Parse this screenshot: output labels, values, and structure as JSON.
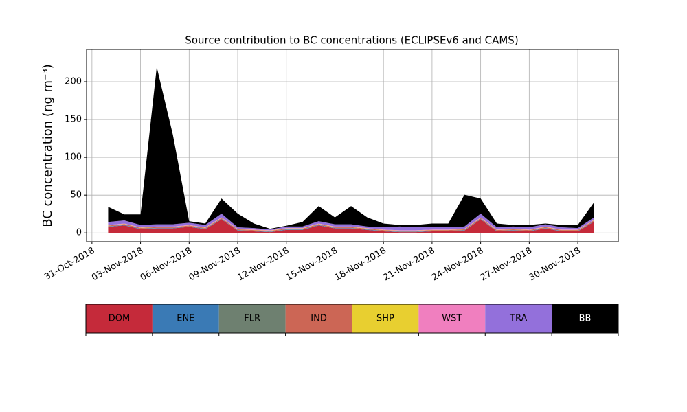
{
  "chart_data": {
    "type": "stacked_area",
    "title": "Source contribution to BC concentrations (ECLIPSEv6 and CAMS)",
    "ylabel": "BC concentration (ng m⁻³)",
    "x": [
      "2018-11-01",
      "2018-11-02",
      "2018-11-03",
      "2018-11-04",
      "2018-11-05",
      "2018-11-06",
      "2018-11-07",
      "2018-11-08",
      "2018-11-09",
      "2018-11-10",
      "2018-11-11",
      "2018-11-12",
      "2018-11-13",
      "2018-11-14",
      "2018-11-15",
      "2018-11-16",
      "2018-11-17",
      "2018-11-18",
      "2018-11-19",
      "2018-11-20",
      "2018-11-21",
      "2018-11-22",
      "2018-11-23",
      "2018-11-24",
      "2018-11-25",
      "2018-11-26",
      "2018-11-27",
      "2018-11-28",
      "2018-11-29",
      "2018-11-30",
      "2018-12-01"
    ],
    "series": [
      {
        "name": "DOM",
        "color": "#c52a3a",
        "values": [
          8,
          10,
          5,
          6,
          6,
          8,
          5,
          18,
          3,
          2,
          1,
          4,
          4,
          10,
          6,
          6,
          4,
          2,
          1,
          1,
          2,
          2,
          3,
          18,
          2,
          3,
          2,
          6,
          2,
          2,
          15
        ]
      },
      {
        "name": "ENE",
        "color": "#3a7ab5",
        "values": [
          0.5,
          0.5,
          0.5,
          0.5,
          0.5,
          0.5,
          0.5,
          0.5,
          0.5,
          0.5,
          0.5,
          0.5,
          0.5,
          0.5,
          0.5,
          0.5,
          0.5,
          0.5,
          0.5,
          0.5,
          0.5,
          0.5,
          0.5,
          0.5,
          0.5,
          0.5,
          0.5,
          0.5,
          0.5,
          0.5,
          0.5
        ]
      },
      {
        "name": "FLR",
        "color": "#6e8070",
        "values": [
          0.2,
          0.2,
          0.2,
          0.2,
          0.2,
          0.2,
          0.2,
          0.2,
          0.2,
          0.2,
          0.2,
          0.2,
          0.2,
          0.2,
          0.2,
          0.2,
          0.2,
          0.2,
          0.2,
          0.2,
          0.2,
          0.2,
          0.2,
          0.2,
          0.2,
          0.2,
          0.2,
          0.2,
          0.2,
          0.2,
          0.2
        ]
      },
      {
        "name": "IND",
        "color": "#cc6655",
        "values": [
          1,
          1,
          1,
          1,
          1,
          1,
          1,
          1,
          1,
          1,
          1,
          1,
          1,
          1,
          1,
          1,
          1,
          1,
          1,
          1,
          1,
          1,
          1,
          1,
          1,
          1,
          1,
          1,
          1,
          1,
          1
        ]
      },
      {
        "name": "SHP",
        "color": "#e8cf30",
        "values": [
          0.3,
          0.3,
          0.3,
          0.3,
          0.3,
          0.3,
          0.3,
          0.3,
          0.3,
          0.3,
          0.3,
          0.3,
          0.3,
          0.3,
          0.3,
          0.3,
          0.3,
          0.3,
          0.3,
          0.3,
          0.3,
          0.3,
          0.3,
          0.3,
          0.3,
          0.3,
          0.3,
          0.3,
          0.3,
          0.3,
          0.3
        ]
      },
      {
        "name": "WST",
        "color": "#f07fbf",
        "values": [
          0.5,
          0.5,
          0.5,
          0.5,
          0.5,
          0.5,
          0.5,
          0.5,
          0.5,
          0.5,
          0.5,
          0.5,
          0.5,
          0.5,
          0.5,
          0.5,
          0.5,
          0.5,
          0.5,
          0.5,
          0.5,
          0.5,
          0.5,
          0.5,
          0.5,
          0.5,
          0.5,
          0.5,
          0.5,
          0.5,
          0.5
        ]
      },
      {
        "name": "TRA",
        "color": "#9370db",
        "values": [
          4,
          4,
          3,
          3,
          3,
          3,
          3,
          5,
          2,
          2,
          1,
          2,
          2,
          3,
          3,
          3,
          2,
          3,
          5,
          4,
          3,
          3,
          3,
          5,
          3,
          3,
          3,
          3,
          3,
          2,
          3
        ]
      },
      {
        "name": "BB",
        "color": "#000000",
        "values": [
          20,
          8,
          14,
          208,
          118,
          2,
          2,
          20,
          18,
          6,
          1,
          1,
          6,
          20,
          9,
          24,
          12,
          5,
          2,
          3,
          5,
          5,
          42,
          20,
          5,
          2,
          3,
          1,
          3,
          4,
          20
        ]
      }
    ],
    "xlim": [
      "2018-10-30T16:00",
      "2018-12-02T12:00"
    ],
    "xticks": [
      {
        "value": "2018-10-31",
        "label": "31-Oct-2018"
      },
      {
        "value": "2018-11-03",
        "label": "03-Nov-2018"
      },
      {
        "value": "2018-11-06",
        "label": "06-Nov-2018"
      },
      {
        "value": "2018-11-09",
        "label": "09-Nov-2018"
      },
      {
        "value": "2018-11-12",
        "label": "12-Nov-2018"
      },
      {
        "value": "2018-11-15",
        "label": "15-Nov-2018"
      },
      {
        "value": "2018-11-18",
        "label": "18-Nov-2018"
      },
      {
        "value": "2018-11-21",
        "label": "21-Nov-2018"
      },
      {
        "value": "2018-11-24",
        "label": "24-Nov-2018"
      },
      {
        "value": "2018-11-27",
        "label": "27-Nov-2018"
      },
      {
        "value": "2018-11-30",
        "label": "30-Nov-2018"
      }
    ],
    "ylim": [
      -11.6,
      242.7
    ],
    "yticks": [
      0,
      50,
      100,
      150,
      200
    ],
    "grid": true
  }
}
